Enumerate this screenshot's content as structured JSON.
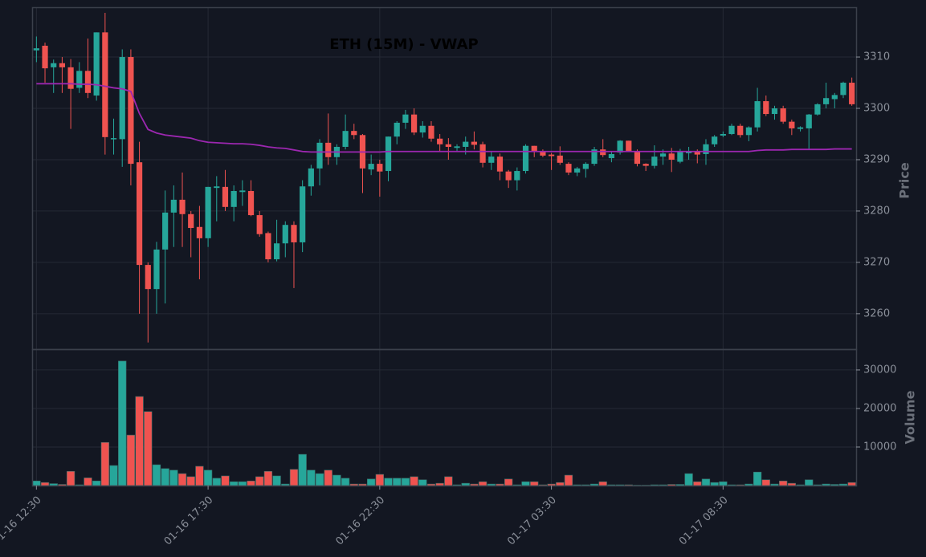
{
  "chart_data": {
    "type": "candlestick",
    "title": "ETH (15M) - VWAP",
    "ylabel": "Price",
    "up_color": "#26a69a",
    "down_color": "#ef5350",
    "vwap_name": "VWAP",
    "vwap_color": "#9c27b0",
    "grid": true,
    "categories": [
      "01-16 12:30",
      null,
      null,
      null,
      null,
      null,
      null,
      null,
      null,
      null,
      null,
      null,
      null,
      null,
      null,
      null,
      null,
      null,
      null,
      null,
      "01-16 17:30",
      null,
      null,
      null,
      null,
      null,
      null,
      null,
      null,
      null,
      null,
      null,
      null,
      null,
      null,
      null,
      null,
      null,
      null,
      null,
      "01-16 22:30",
      null,
      null,
      null,
      null,
      null,
      null,
      null,
      null,
      null,
      null,
      null,
      null,
      null,
      null,
      null,
      null,
      null,
      null,
      null,
      "01-17 03:30",
      null,
      null,
      null,
      null,
      null,
      null,
      null,
      null,
      null,
      null,
      null,
      null,
      null,
      null,
      null,
      null,
      null,
      null,
      null,
      "01-17 08:30",
      null,
      null,
      null,
      null,
      null,
      null,
      null,
      null,
      null,
      null,
      null,
      null,
      null,
      null,
      null
    ],
    "open": [
      3311.3,
      3312.2,
      3308,
      3308.8,
      3308,
      3304,
      3307.3,
      3302.5,
      3314.8,
      3294,
      3294,
      3310,
      3289.5,
      3269.5,
      3264.8,
      3272.5,
      3279.7,
      3282.2,
      3279.4,
      3276.9,
      3274.7,
      3284.5,
      3284.7,
      3280.8,
      3283.7,
      3283.9,
      3279.2,
      3275.7,
      3270.6,
      3273.7,
      3277.3,
      3273.9,
      3284.8,
      3288.3,
      3293.3,
      3290.5,
      3292.5,
      3295.6,
      3294.8,
      3288.1,
      3289.2,
      3287.8,
      3294.5,
      3297.2,
      3298.8,
      3295.3,
      3296.6,
      3294.1,
      3293,
      3292.3,
      3292.5,
      3293.5,
      3293,
      3289.4,
      3290.6,
      3287.7,
      3286,
      3287.8,
      3292.7,
      3291.6,
      3291,
      3290.8,
      3289.2,
      3287.5,
      3288.2,
      3289.2,
      3292,
      3290.3,
      3291.4,
      3293.7,
      3291.7,
      3289.2,
      3288.8,
      3290.6,
      3291.2,
      3289.6,
      3291.3,
      3291.5,
      3291.1,
      3293,
      3294.7,
      3295,
      3296.6,
      3294.8,
      3296.3,
      3301.4,
      3298.9,
      3300,
      3297.4,
      3296,
      3296.1,
      3298.8,
      3300.8,
      3301.8,
      3302.6,
      3305
    ],
    "high": [
      3314,
      3312.8,
      3309.5,
      3310,
      3309.6,
      3309,
      3313.6,
      3314.8,
      3318.6,
      3298,
      3311.5,
      3311.5,
      3293.5,
      3270,
      3274,
      3284,
      3285,
      3287.5,
      3280,
      3281,
      3284.7,
      3286.8,
      3288,
      3285,
      3286,
      3286,
      3280,
      3276,
      3278.3,
      3278,
      3278,
      3286,
      3289,
      3294,
      3299,
      3293,
      3298.8,
      3297,
      3295,
      3291,
      3290,
      3294.5,
      3297.5,
      3299.7,
      3300,
      3297.5,
      3297.5,
      3295,
      3294.2,
      3293,
      3294.5,
      3295.5,
      3293.5,
      3291.6,
      3291.2,
      3288,
      3288.5,
      3293,
      3292.7,
      3292,
      3291.3,
      3292.6,
      3289.5,
      3288.6,
      3289.5,
      3292.5,
      3294,
      3291.5,
      3293.8,
      3293.7,
      3292,
      3289.3,
      3292.8,
      3292,
      3292.3,
      3292.1,
      3292.5,
      3292,
      3294,
      3294.8,
      3295.5,
      3297,
      3297,
      3296.5,
      3304,
      3302.5,
      3300.5,
      3300.5,
      3297.8,
      3296.5,
      3298.9,
      3301,
      3305,
      3303,
      3305.2,
      3306
    ],
    "low": [
      3309,
      3305,
      3303,
      3303,
      3296,
      3303,
      3302,
      3301.5,
      3291,
      3291,
      3288.6,
      3285,
      3260,
      3254.4,
      3260,
      3262,
      3273,
      3273,
      3271,
      3266.7,
      3273,
      3278,
      3280,
      3278,
      3281,
      3279,
      3275,
      3270,
      3270.2,
      3271,
      3265,
      3272,
      3283,
      3285,
      3289,
      3289,
      3292,
      3294,
      3283.5,
      3287,
      3282.8,
      3285.8,
      3293,
      3296,
      3294.8,
      3294.3,
      3293.5,
      3291.5,
      3290,
      3291.5,
      3291,
      3292,
      3288.5,
      3288,
      3286,
      3284.5,
      3284,
      3287.3,
      3290.5,
      3290.5,
      3288,
      3289,
      3287,
      3286.8,
      3286.5,
      3288.8,
      3290.5,
      3289.5,
      3291,
      3291.5,
      3288.7,
      3287.8,
      3288.3,
      3289,
      3287.6,
      3289.3,
      3290,
      3289.3,
      3289,
      3292.5,
      3294.4,
      3294.8,
      3294.3,
      3293.6,
      3295.5,
      3298.5,
      3297.8,
      3297,
      3294.8,
      3295.5,
      3292,
      3298.6,
      3300,
      3300,
      3302,
      3300.5
    ],
    "close": [
      3311.7,
      3307.8,
      3308.8,
      3308,
      3303.8,
      3307.3,
      3303,
      3314.8,
      3294.4,
      3294.2,
      3310,
      3289.2,
      3269.5,
      3264.8,
      3272.5,
      3279.7,
      3282.2,
      3279.4,
      3276.7,
      3274.7,
      3284.7,
      3284.8,
      3280.8,
      3283.9,
      3284,
      3279.2,
      3275.5,
      3270.6,
      3273.7,
      3277.3,
      3273.9,
      3284.8,
      3288.3,
      3293.3,
      3290.5,
      3292.5,
      3295.6,
      3294.8,
      3288.3,
      3289.2,
      3287.7,
      3294.5,
      3297.2,
      3298.8,
      3295.3,
      3296.6,
      3294.1,
      3293,
      3292.5,
      3292.6,
      3293.5,
      3292.9,
      3289.4,
      3290.6,
      3287.7,
      3286,
      3287.8,
      3292.7,
      3291.6,
      3290.8,
      3290.7,
      3289.4,
      3287.5,
      3288.3,
      3289.2,
      3292,
      3290.9,
      3291.1,
      3293.7,
      3291.7,
      3289.2,
      3288.8,
      3290.6,
      3291.2,
      3290,
      3291.5,
      3291.5,
      3291,
      3293,
      3294.5,
      3295,
      3296.6,
      3294.8,
      3296.3,
      3301.4,
      3298.9,
      3300,
      3297.4,
      3296.1,
      3296.3,
      3298.8,
      3300.8,
      3302,
      3302.6,
      3305,
      3300.8
    ],
    "vwap": [
      3304.8,
      3304.8,
      3304.8,
      3304.8,
      3304.8,
      3304.7,
      3304.7,
      3304.6,
      3304.3,
      3304,
      3303.8,
      3303.3,
      3299,
      3295.9,
      3295.2,
      3294.8,
      3294.6,
      3294.4,
      3294.2,
      3293.7,
      3293.4,
      3293.3,
      3293.2,
      3293.1,
      3293.1,
      3293,
      3292.8,
      3292.5,
      3292.3,
      3292.2,
      3291.9,
      3291.6,
      3291.5,
      3291.5,
      3291.5,
      3291.5,
      3291.5,
      3291.5,
      3291.5,
      3291.5,
      3291.5,
      3291.6,
      3291.6,
      3291.6,
      3291.6,
      3291.6,
      3291.6,
      3291.6,
      3291.6,
      3291.6,
      3291.6,
      3291.6,
      3291.6,
      3291.6,
      3291.6,
      3291.6,
      3291.6,
      3291.6,
      3291.6,
      3291.6,
      3291.6,
      3291.6,
      3291.6,
      3291.6,
      3291.6,
      3291.6,
      3291.6,
      3291.6,
      3291.6,
      3291.6,
      3291.6,
      3291.6,
      3291.6,
      3291.6,
      3291.6,
      3291.6,
      3291.6,
      3291.6,
      3291.6,
      3291.6,
      3291.6,
      3291.6,
      3291.6,
      3291.6,
      3291.8,
      3291.9,
      3291.9,
      3291.9,
      3292,
      3292,
      3292,
      3292,
      3292,
      3292.1,
      3292.1,
      3292.1
    ],
    "ylim": [
      3253.1,
      3319.7
    ],
    "yticks": [
      3260,
      3270,
      3280,
      3290,
      3300,
      3310
    ],
    "volume": {
      "label": "Volume",
      "ylim": [
        0,
        35400
      ],
      "yticks": [
        10000,
        20000,
        30000
      ],
      "values": [
        1200,
        800,
        500,
        300,
        3700,
        200,
        2000,
        1200,
        11200,
        5200,
        32300,
        13100,
        23100,
        19200,
        5400,
        4400,
        4000,
        3100,
        2300,
        5000,
        4000,
        1900,
        2500,
        1000,
        1000,
        1200,
        2300,
        3700,
        2500,
        400,
        4200,
        8100,
        4000,
        3100,
        4000,
        2700,
        1900,
        400,
        400,
        1700,
        2900,
        1900,
        1900,
        1900,
        2300,
        1500,
        400,
        600,
        2300,
        200,
        600,
        400,
        1000,
        400,
        400,
        1700,
        200,
        1000,
        1000,
        200,
        400,
        800,
        2700,
        200,
        200,
        400,
        1000,
        200,
        200,
        200,
        100,
        100,
        200,
        200,
        300,
        300,
        3100,
        1000,
        1700,
        800,
        1000,
        200,
        200,
        400,
        3500,
        1500,
        400,
        1200,
        600,
        200,
        1500,
        200,
        400,
        300,
        400,
        800
      ]
    }
  }
}
